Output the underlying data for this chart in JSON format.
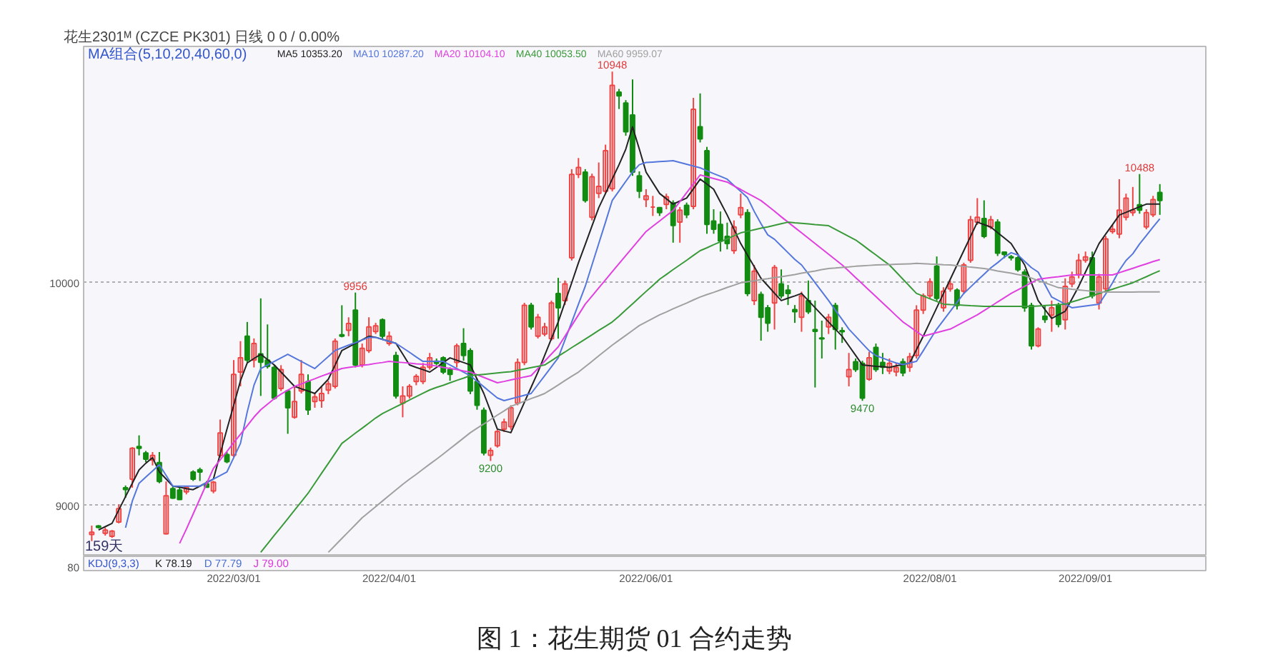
{
  "chart_data": {
    "type": "candlestick",
    "title": "图 1：花生期货 01 合约走势",
    "subtitle": "花生2301ᴹ (CZCE PK301)   日线   0   0 / 0.00%",
    "legend_title": "MA组合(5,10,20,40,60,0)",
    "legend": "top left",
    "grid": "y",
    "ylim": [
      8772,
      11061
    ],
    "yticks": [
      9000,
      10000
    ],
    "categories": [
      null,
      null,
      null,
      null,
      null,
      null,
      null,
      null,
      null,
      null,
      null,
      null,
      null,
      null,
      null,
      null,
      null,
      null,
      null,
      null,
      null,
      "2022/03/01",
      null,
      null,
      null,
      null,
      null,
      null,
      null,
      null,
      null,
      null,
      null,
      null,
      null,
      null,
      null,
      null,
      null,
      null,
      null,
      null,
      null,
      null,
      "2022/04/01",
      null,
      null,
      null,
      null,
      null,
      null,
      null,
      null,
      null,
      null,
      null,
      null,
      null,
      null,
      null,
      null,
      null,
      null,
      null,
      null,
      null,
      null,
      null,
      null,
      null,
      null,
      null,
      null,
      null,
      null,
      null,
      null,
      null,
      null,
      null,
      null,
      null,
      "2022/06/01",
      null,
      null,
      null,
      null,
      null,
      null,
      null,
      null,
      null,
      null,
      null,
      null,
      null,
      null,
      null,
      null,
      null,
      null,
      null,
      null,
      null,
      null,
      null,
      null,
      null,
      null,
      null,
      null,
      null,
      null,
      null,
      null,
      null,
      null,
      null,
      null,
      null,
      null,
      null,
      null,
      null,
      "2022/08/01",
      null,
      null,
      null,
      null,
      null,
      null,
      null,
      null,
      null,
      null,
      null,
      null,
      null,
      null,
      null,
      null,
      null,
      null,
      null,
      null,
      null,
      null,
      "2022/09/01",
      null,
      null,
      null,
      null,
      null,
      null,
      null,
      null,
      null,
      null,
      null
    ],
    "ohlc": [
      [
        8870,
        8910,
        8840,
        8880
      ],
      [
        8908,
        8912,
        8897,
        8902
      ],
      [
        8875,
        8900,
        8865,
        8890
      ],
      [
        8862,
        8890,
        8855,
        8885
      ],
      [
        8926,
        9005,
        8920,
        8986
      ],
      [
        9080,
        9090,
        9035,
        9072
      ],
      [
        9118,
        9262,
        9080,
        9257
      ],
      [
        9265,
        9315,
        9225,
        9257
      ],
      [
        9236,
        9245,
        9195,
        9208
      ],
      [
        9204,
        9240,
        9180,
        9225
      ],
      [
        9193,
        9240,
        9100,
        9108
      ],
      [
        8873,
        9108,
        8870,
        9044
      ],
      [
        9076,
        9085,
        9030,
        9033
      ],
      [
        9069,
        9080,
        9025,
        9027
      ],
      [
        9061,
        9085,
        9050,
        9082
      ],
      [
        9150,
        9158,
        9110,
        9118
      ],
      [
        9161,
        9170,
        9110,
        9150
      ],
      [
        9097,
        9110,
        9080,
        9082
      ],
      [
        9065,
        9110,
        9055,
        9105
      ],
      [
        9225,
        9386,
        9215,
        9326
      ],
      [
        9229,
        9240,
        9190,
        9197
      ],
      [
        9226,
        9653,
        9215,
        9589
      ],
      [
        9599,
        9738,
        9535,
        9663
      ],
      [
        9760,
        9824,
        9640,
        9653
      ],
      [
        9653,
        9750,
        9620,
        9727
      ],
      [
        9681,
        9930,
        9492,
        9643
      ],
      [
        9653,
        9813,
        9615,
        9625
      ],
      [
        9620,
        9630,
        9475,
        9482
      ],
      [
        9525,
        9630,
        9514,
        9610
      ],
      [
        9514,
        9520,
        9322,
        9439
      ],
      [
        9396,
        9535,
        9390,
        9467
      ],
      [
        9514,
        9653,
        9503,
        9589
      ],
      [
        9557,
        9589,
        9407,
        9429
      ],
      [
        9467,
        9503,
        9439,
        9488
      ],
      [
        9471,
        9535,
        9439,
        9503
      ],
      [
        9518,
        9560,
        9500,
        9546
      ],
      [
        9535,
        9750,
        9525,
        9738
      ],
      [
        9767,
        9899,
        9755,
        9760
      ],
      [
        9787,
        9845,
        9760,
        9817
      ],
      [
        9877,
        9956,
        9620,
        9631
      ],
      [
        9631,
        9727,
        9620,
        9706
      ],
      [
        9695,
        9845,
        9685,
        9802
      ],
      [
        9781,
        9820,
        9770,
        9807
      ],
      [
        9834,
        9840,
        9750,
        9760
      ],
      [
        9727,
        9781,
        9717,
        9760
      ],
      [
        9674,
        9690,
        9480,
        9492
      ],
      [
        9460,
        9535,
        9396,
        9492
      ],
      [
        9492,
        9545,
        9480,
        9535
      ],
      [
        9557,
        9590,
        9540,
        9580
      ],
      [
        9557,
        9640,
        9545,
        9621
      ],
      [
        9621,
        9685,
        9610,
        9663
      ],
      [
        9648,
        9660,
        9630,
        9638
      ],
      [
        9663,
        9670,
        9590,
        9599
      ],
      [
        9610,
        9620,
        9560,
        9589
      ],
      [
        9642,
        9727,
        9620,
        9717
      ],
      [
        9727,
        9796,
        9650,
        9674
      ],
      [
        9695,
        9706,
        9500,
        9514
      ],
      [
        9557,
        9570,
        9430,
        9450
      ],
      [
        9428,
        9440,
        9225,
        9236
      ],
      [
        9226,
        9260,
        9200,
        9247
      ],
      [
        9268,
        9340,
        9260,
        9332
      ],
      [
        9343,
        9390,
        9330,
        9375
      ],
      [
        9354,
        9450,
        9340,
        9439
      ],
      [
        9460,
        9660,
        9450,
        9642
      ],
      [
        9642,
        9910,
        9630,
        9899
      ],
      [
        9899,
        9910,
        9790,
        9802
      ],
      [
        9760,
        9860,
        9750,
        9845
      ],
      [
        9770,
        9820,
        9760,
        9802
      ],
      [
        9749,
        9920,
        9740,
        9909
      ],
      [
        9952,
        10022,
        9749,
        9888
      ],
      [
        9920,
        10010,
        9900,
        9995
      ],
      [
        10112,
        10510,
        10100,
        10486
      ],
      [
        10486,
        10560,
        10470,
        10518
      ],
      [
        10497,
        10510,
        10360,
        10369
      ],
      [
        10294,
        10490,
        10280,
        10476
      ],
      [
        10401,
        10540,
        10380,
        10433
      ],
      [
        10411,
        10620,
        10400,
        10593
      ],
      [
        10422,
        10948,
        10410,
        10886
      ],
      [
        10856,
        10870,
        10780,
        10839
      ],
      [
        10807,
        10820,
        10660,
        10678
      ],
      [
        10753,
        10913,
        10480,
        10497
      ],
      [
        10480,
        10500,
        10380,
        10411
      ],
      [
        10373,
        10420,
        10340,
        10390
      ],
      [
        10340,
        10390,
        10300,
        10340
      ],
      [
        10337,
        10340,
        10300,
        10315
      ],
      [
        10352,
        10400,
        10330,
        10386
      ],
      [
        10358,
        10370,
        10180,
        10257
      ],
      [
        10272,
        10340,
        10180,
        10326
      ],
      [
        10348,
        10360,
        10290,
        10305
      ],
      [
        10343,
        10830,
        10330,
        10779
      ],
      [
        10700,
        10850,
        10630,
        10646
      ],
      [
        10593,
        10610,
        10220,
        10262
      ],
      [
        10277,
        10330,
        10220,
        10240
      ],
      [
        10262,
        10320,
        10140,
        10187
      ],
      [
        10208,
        10270,
        10150,
        10176
      ],
      [
        10144,
        10280,
        10130,
        10251
      ],
      [
        10305,
        10400,
        10290,
        10337
      ],
      [
        10315,
        10330,
        9940,
        9952
      ],
      [
        9920,
        10080,
        9900,
        10052
      ],
      [
        9948,
        9960,
        9740,
        9845
      ],
      [
        9888,
        9900,
        9780,
        9819
      ],
      [
        9909,
        10080,
        9790,
        10069
      ],
      [
        9995,
        10060,
        9930,
        9941
      ],
      [
        9967,
        9990,
        9900,
        9952
      ],
      [
        9880,
        9900,
        9820,
        9870
      ],
      [
        9845,
        9960,
        9780,
        9941
      ],
      [
        9920,
        10010,
        9860,
        9870
      ],
      [
        9790,
        9920,
        9530,
        9782
      ],
      [
        9752,
        9830,
        9660,
        9748
      ],
      [
        9802,
        9860,
        9770,
        9845
      ],
      [
        9898,
        9910,
        9700,
        9791
      ],
      [
        9785,
        9800,
        9730,
        9780
      ],
      [
        9578,
        9685,
        9535,
        9610
      ],
      [
        9646,
        9660,
        9600,
        9610
      ],
      [
        9638,
        9650,
        9470,
        9482
      ],
      [
        9567,
        9690,
        9560,
        9663
      ],
      [
        9710,
        9727,
        9600,
        9610
      ],
      [
        9642,
        9685,
        9590,
        9621
      ],
      [
        9604,
        9660,
        9590,
        9638
      ],
      [
        9600,
        9640,
        9580,
        9620
      ],
      [
        9646,
        9660,
        9580,
        9595
      ],
      [
        9621,
        9685,
        9600,
        9668
      ],
      [
        9674,
        9899,
        9660,
        9877
      ],
      [
        9877,
        9952,
        9860,
        9941
      ],
      [
        9941,
        10020,
        9930,
        10005
      ],
      [
        10074,
        10118,
        9920,
        9930
      ],
      [
        9888,
        9980,
        9870,
        9962
      ],
      [
        9973,
        10010,
        9960,
        9995
      ],
      [
        9967,
        9975,
        9880,
        9898
      ],
      [
        9962,
        10090,
        9950,
        10080
      ],
      [
        10101,
        10300,
        10090,
        10283
      ],
      [
        10272,
        10380,
        10260,
        10294
      ],
      [
        10288,
        10370,
        10200,
        10208
      ],
      [
        10251,
        10300,
        10240,
        10283
      ],
      [
        10272,
        10285,
        10120,
        10133
      ],
      [
        10138,
        10140,
        10110,
        10127
      ],
      [
        10117,
        10125,
        10100,
        10112
      ],
      [
        10112,
        10120,
        10050,
        10058
      ],
      [
        10048,
        10060,
        9870,
        9888
      ],
      [
        9898,
        9910,
        9700,
        9717
      ],
      [
        9717,
        9800,
        9710,
        9792
      ],
      [
        9850,
        9900,
        9820,
        9835
      ],
      [
        9855,
        9920,
        9780,
        9888
      ],
      [
        9898,
        9910,
        9800,
        9813
      ],
      [
        9834,
        10020,
        9790,
        9984
      ],
      [
        9995,
        10050,
        9980,
        10026
      ],
      [
        10037,
        10130,
        10020,
        10101
      ],
      [
        10101,
        10140,
        10090,
        10116
      ],
      [
        10112,
        10140,
        9930,
        9941
      ],
      [
        9909,
        10040,
        9880,
        10026
      ],
      [
        9973,
        10210,
        9960,
        10197
      ],
      [
        10230,
        10260,
        10220,
        10240
      ],
      [
        10219,
        10465,
        10200,
        10326
      ],
      [
        10294,
        10400,
        10280,
        10380
      ],
      [
        10315,
        10430,
        10300,
        10326
      ],
      [
        10350,
        10488,
        10310,
        10326
      ],
      [
        10251,
        10330,
        10240,
        10315
      ],
      [
        10305,
        10390,
        10295,
        10373
      ],
      [
        10405,
        10443,
        10305,
        10369
      ]
    ],
    "colors": [
      "#ee4444",
      "#118c11",
      "#ee4444",
      "#ee4444",
      "#ee4444",
      "#118c11",
      "#ee4444",
      "#118c11",
      "#118c11",
      "#ee4444",
      "#118c11",
      "#ee4444",
      "#118c11",
      "#118c11",
      "#ee4444",
      "#118c11",
      "#118c11",
      "#118c11",
      "#ee4444",
      "#ee4444",
      "#118c11",
      "#ee4444",
      "#ee4444",
      "#118c11",
      "#ee4444",
      "#118c11",
      "#118c11",
      "#118c11",
      "#ee4444",
      "#118c11",
      "#ee4444",
      "#ee4444",
      "#118c11",
      "#ee4444",
      "#ee4444",
      "#ee4444",
      "#ee4444",
      "#118c11",
      "#ee4444",
      "#118c11",
      "#ee4444",
      "#ee4444",
      "#ee4444",
      "#118c11",
      "#ee4444",
      "#118c11",
      "#ee4444",
      "#ee4444",
      "#ee4444",
      "#ee4444",
      "#ee4444",
      "#118c11",
      "#118c11",
      "#118c11",
      "#ee4444",
      "#118c11",
      "#118c11",
      "#118c11",
      "#118c11",
      "#ee4444",
      "#ee4444",
      "#ee4444",
      "#ee4444",
      "#ee4444",
      "#ee4444",
      "#118c11",
      "#ee4444",
      "#ee4444",
      "#ee4444",
      "#118c11",
      "#ee4444",
      "#ee4444",
      "#ee4444",
      "#118c11",
      "#ee4444",
      "#ee4444",
      "#ee4444",
      "#ee4444",
      "#118c11",
      "#118c11",
      "#118c11",
      "#118c11",
      "#ee4444",
      "#ee4444",
      "#118c11",
      "#ee4444",
      "#118c11",
      "#ee4444",
      "#118c11",
      "#ee4444",
      "#118c11",
      "#118c11",
      "#118c11",
      "#118c11",
      "#118c11",
      "#ee4444",
      "#ee4444",
      "#118c11",
      "#ee4444",
      "#118c11",
      "#118c11",
      "#ee4444",
      "#118c11",
      "#118c11",
      "#118c11",
      "#ee4444",
      "#118c11",
      "#118c11",
      "#118c11",
      "#ee4444",
      "#118c11",
      "#118c11",
      "#ee4444",
      "#118c11",
      "#118c11",
      "#ee4444",
      "#118c11",
      "#118c11",
      "#ee4444",
      "#ee4444",
      "#118c11",
      "#ee4444",
      "#ee4444",
      "#ee4444",
      "#ee4444",
      "#118c11",
      "#ee4444",
      "#ee4444",
      "#118c11",
      "#ee4444",
      "#ee4444",
      "#ee4444",
      "#118c11",
      "#ee4444",
      "#118c11",
      "#118c11",
      "#118c11",
      "#118c11",
      "#118c11",
      "#118c11",
      "#ee4444",
      "#118c11",
      "#ee4444",
      "#118c11",
      "#ee4444",
      "#ee4444",
      "#ee4444",
      "#ee4444",
      "#118c11",
      "#ee4444",
      "#ee4444",
      "#ee4444",
      "#ee4444",
      "#ee4444",
      "#ee4444",
      "#118c11",
      "#ee4444",
      "#ee4444",
      "#118c11"
    ],
    "series": [
      {
        "type": "line",
        "name": "MA5 10353.20",
        "color": "#222222",
        "values": [
          null,
          8890,
          8905,
          8920,
          8980,
          9040,
          9100,
          9160,
          9190,
          9215,
          9151,
          9119,
          9087,
          9082,
          9076,
          9071,
          9087,
          9103,
          9119,
          9231,
          9343,
          9450,
          9560,
          9640,
          9660,
          9679,
          9655,
          9631,
          9599,
          9567,
          9535,
          9524,
          9514,
          9503,
          9535,
          9567,
          9631,
          9696,
          9712,
          9728,
          9744,
          9760,
          9755,
          9746,
          9737,
          9728,
          9680,
          9631,
          9620,
          9610,
          9599,
          9620,
          9642,
          9663,
          9652,
          9642,
          9631,
          9567,
          9503,
          9423,
          9343,
          9335,
          9327,
          9395,
          9463,
          9531,
          9599,
          9674,
          9749,
          9824,
          9912,
          10000,
          10090,
          10172,
          10255,
          10337,
          10401,
          10466,
          10530,
          10600,
          10700,
          10600,
          10497,
          10449,
          10401,
          10377,
          10353,
          10367,
          10380,
          10422,
          10465,
          10443,
          10420,
          10362,
          10304,
          10240,
          10176,
          10124,
          10072,
          10020,
          9987,
          9953,
          9920,
          9931,
          9941,
          9952,
          9920,
          9888,
          9856,
          9824,
          9792,
          9760,
          9717,
          9674,
          9631,
          9628,
          9625,
          9623,
          9620,
          9627,
          9633,
          9640,
          9700,
          9760,
          9824,
          9888,
          9952,
          10016,
          10080,
          10144,
          10208,
          10272,
          10261,
          10250,
          10225,
          10201,
          10176,
          10128,
          10080,
          10000,
          9920,
          9880,
          9840,
          9856,
          9872,
          9928,
          9984,
          10048,
          10112,
          10176,
          10219,
          10261,
          10304,
          10316,
          10329,
          10341,
          10353,
          10353,
          10353
        ]
      },
      {
        "type": "line",
        "name": "MA10 10287.20",
        "color": "#5577dd",
        "values": [
          null,
          null,
          null,
          null,
          null,
          8900,
          9020,
          9100,
          9128,
          9155,
          9183,
          9135,
          9087,
          9087,
          9087,
          9087,
          9087,
          9103,
          9119,
          9135,
          9151,
          9215,
          9279,
          9420,
          9540,
          9615,
          9631,
          9647,
          9663,
          9679,
          9663,
          9647,
          9631,
          9615,
          9642,
          9669,
          9696,
          9708,
          9720,
          9731,
          9743,
          9755,
          9755,
          9746,
          9737,
          9728,
          9708,
          9688,
          9667,
          9647,
          9647,
          9647,
          9647,
          9631,
          9615,
          9599,
          9583,
          9558,
          9533,
          9508,
          9483,
          9471,
          9479,
          9487,
          9495,
          9503,
          9543,
          9583,
          9623,
          9663,
          9743,
          9823,
          9904,
          9984,
          10080,
          10176,
          10272,
          10370,
          10412,
          10455,
          10497,
          10530,
          10540,
          10542,
          10544,
          10546,
          10548,
          10540,
          10532,
          10524,
          10516,
          10503,
          10490,
          10478,
          10465,
          10437,
          10410,
          10382,
          10320,
          10265,
          10215,
          10195,
          10165,
          10135,
          10105,
          10080,
          10040,
          10000,
          9960,
          9920,
          9877,
          9835,
          9792,
          9760,
          9727,
          9695,
          9673,
          9662,
          9650,
          9640,
          9633,
          9640,
          9647,
          9695,
          9744,
          9792,
          9832,
          9872,
          9912,
          9952,
          9981,
          10010,
          10038,
          10067,
          10090,
          10115,
          10135,
          10125,
          10096,
          10068,
          10048,
          9992,
          9936,
          9920,
          9904,
          9888,
          9892,
          9896,
          9900,
          9904,
          9950,
          10000,
          10056,
          10100,
          10130,
          10174,
          10212,
          10250,
          10287
        ]
      },
      {
        "type": "line",
        "name": "MA20 10104.10",
        "color": "#e040e0",
        "values": [
          null,
          null,
          null,
          null,
          null,
          null,
          null,
          null,
          null,
          null,
          null,
          null,
          null,
          8830,
          8894,
          8962,
          9030,
          9099,
          9167,
          9205,
          9243,
          9282,
          9320,
          9358,
          9397,
          9430,
          9455,
          9480,
          9500,
          9518,
          9535,
          9546,
          9558,
          9569,
          9581,
          9592,
          9604,
          9615,
          9620,
          9624,
          9629,
          9633,
          9638,
          9642,
          9647,
          9644,
          9642,
          9639,
          9636,
          9634,
          9631,
          9626,
          9620,
          9615,
          9610,
          9604,
          9599,
          9587,
          9575,
          9563,
          9551,
          9557,
          9564,
          9570,
          9577,
          9583,
          9615,
          9648,
          9680,
          9712,
          9760,
          9808,
          9856,
          9904,
          9940,
          9977,
          10013,
          10050,
          10086,
          10122,
          10158,
          10194,
          10230,
          10254,
          10277,
          10301,
          10324,
          10364,
          10404,
          10444,
          10484,
          10476,
          10468,
          10460,
          10452,
          10435,
          10419,
          10402,
          10386,
          10369,
          10345,
          10321,
          10296,
          10272,
          10248,
          10224,
          10200,
          10176,
          10152,
          10128,
          10104,
          10080,
          10052,
          10023,
          9995,
          9966,
          9938,
          9909,
          9881,
          9852,
          9824,
          9803,
          9781,
          9760,
          9768,
          9776,
          9784,
          9792,
          9808,
          9824,
          9840,
          9856,
          9875,
          9894,
          9914,
          9933,
          9952,
          9968,
          9984,
          10000,
          10016,
          10020,
          10024,
          10027,
          10031,
          10035,
          10035,
          10035,
          10035,
          10035,
          10035,
          10035,
          10045,
          10055,
          10065,
          10075,
          10085,
          10095,
          10104
        ]
      },
      {
        "type": "line",
        "name": "MA40 10053.50",
        "color": "#3a9a3a",
        "values": [
          null,
          null,
          null,
          null,
          null,
          null,
          null,
          null,
          null,
          null,
          null,
          null,
          null,
          null,
          null,
          null,
          null,
          null,
          null,
          null,
          null,
          null,
          null,
          null,
          null,
          8790,
          8828,
          8866,
          8903,
          8941,
          8979,
          9017,
          9055,
          9100,
          9145,
          9189,
          9234,
          9279,
          9302,
          9325,
          9347,
          9370,
          9393,
          9413,
          9428,
          9443,
          9458,
          9474,
          9489,
          9504,
          9519,
          9530,
          9540,
          9551,
          9562,
          9572,
          9583,
          9586,
          9589,
          9592,
          9595,
          9598,
          9601,
          9607,
          9613,
          9619,
          9625,
          9631,
          9650,
          9670,
          9689,
          9709,
          9728,
          9747,
          9766,
          9786,
          9805,
          9824,
          9850,
          9878,
          9905,
          9933,
          9961,
          9988,
          10016,
          10037,
          10059,
          10080,
          10101,
          10123,
          10144,
          10157,
          10171,
          10184,
          10197,
          10211,
          10224,
          10231,
          10238,
          10245,
          10251,
          10258,
          10265,
          10272,
          10269,
          10267,
          10264,
          10261,
          10259,
          10256,
          10240,
          10224,
          10208,
          10192,
          10170,
          10147,
          10125,
          10102,
          10080,
          10048,
          10016,
          9984,
          9952,
          9940,
          9928,
          9916,
          9904,
          9902,
          9901,
          9899,
          9897,
          9896,
          9894,
          9894,
          9894,
          9894,
          9894,
          9894,
          9894,
          9894,
          9896,
          9898,
          9900,
          9902,
          9904,
          9914,
          9923,
          9933,
          9942,
          9952,
          9962,
          9971,
          9981,
          9990,
          10000,
          10014,
          10027,
          10041,
          10054
        ]
      },
      {
        "type": "line",
        "name": "MA60 9959.07",
        "color": "#a0a0a0",
        "values": [
          null,
          null,
          null,
          null,
          null,
          null,
          null,
          null,
          null,
          null,
          null,
          null,
          null,
          null,
          null,
          null,
          null,
          null,
          null,
          null,
          null,
          null,
          null,
          null,
          null,
          null,
          null,
          null,
          null,
          null,
          null,
          null,
          null,
          null,
          null,
          8790,
          8821,
          8852,
          8883,
          8914,
          8945,
          8970,
          8995,
          9020,
          9045,
          9070,
          9095,
          9118,
          9140,
          9163,
          9186,
          9208,
          9231,
          9255,
          9279,
          9303,
          9327,
          9347,
          9366,
          9386,
          9406,
          9425,
          9445,
          9457,
          9468,
          9480,
          9491,
          9503,
          9522,
          9541,
          9561,
          9580,
          9599,
          9623,
          9647,
          9672,
          9696,
          9720,
          9742,
          9764,
          9786,
          9808,
          9824,
          9840,
          9856,
          9869,
          9883,
          9896,
          9909,
          9923,
          9936,
          9947,
          9957,
          9968,
          9979,
          9989,
          10000,
          10005,
          10009,
          10014,
          10018,
          10023,
          10027,
          10032,
          10037,
          10043,
          10048,
          10053,
          10059,
          10064,
          10066,
          10069,
          10071,
          10074,
          10076,
          10078,
          10080,
          10081,
          10082,
          10083,
          10084,
          10085,
          10087,
          10086,
          10084,
          10083,
          10081,
          10080,
          10077,
          10074,
          10070,
          10067,
          10064,
          10059,
          10053,
          10048,
          10043,
          10037,
          10032,
          10021,
          10010,
          10000,
          9989,
          9978,
          9975,
          9971,
          9968,
          9965,
          9961,
          9958,
          9958,
          9958,
          9958,
          9958,
          9958,
          9959,
          9959,
          9959,
          9959
        ]
      }
    ],
    "annotations": [
      {
        "text": "10948",
        "y": 10948
      },
      {
        "text": "9956",
        "y": 9956
      },
      {
        "text": "9200",
        "y": 9200
      },
      {
        "text": "9470",
        "y": 9470
      },
      {
        "text": "10488",
        "y": 10488
      },
      "159天",
      "KDJ(9,3,3)",
      "K 78.19",
      "D 77.79",
      "J 79.00",
      "80"
    ]
  }
}
